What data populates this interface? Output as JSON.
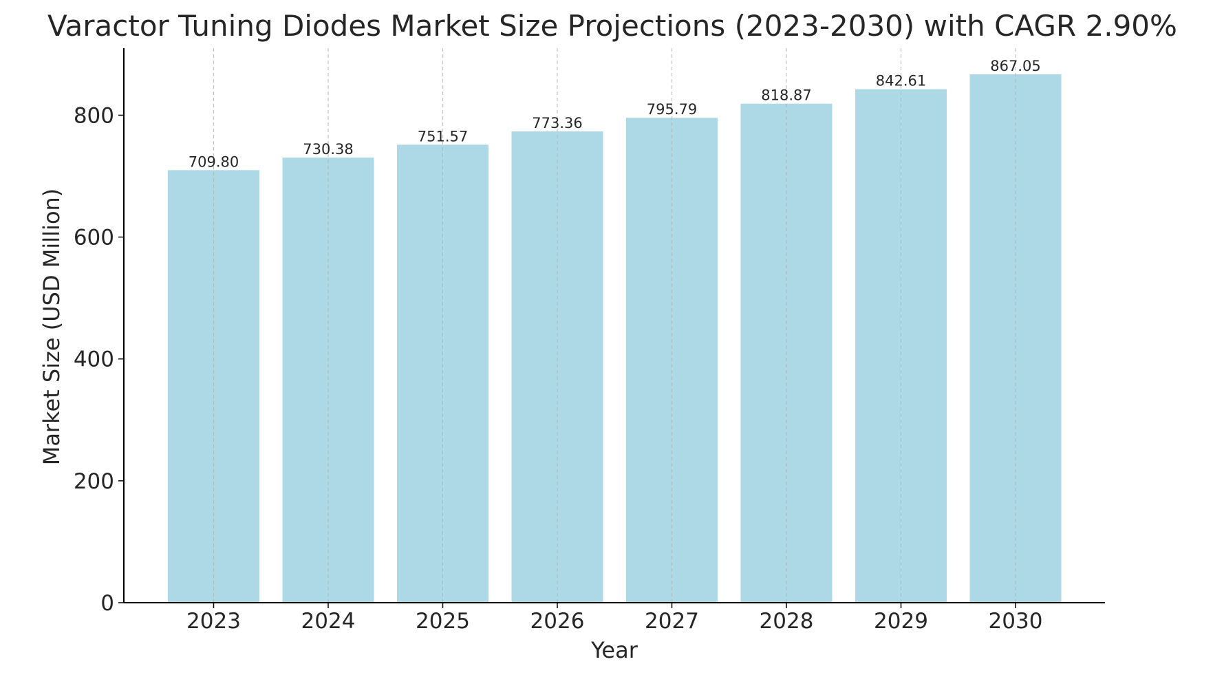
{
  "chart_data": {
    "type": "bar",
    "title": "Varactor Tuning Diodes Market Size Projections (2023-2030) with CAGR 2.90%",
    "xlabel": "Year",
    "ylabel": "Market Size (USD Million)",
    "categories": [
      "2023",
      "2024",
      "2025",
      "2026",
      "2027",
      "2028",
      "2029",
      "2030"
    ],
    "values": [
      709.8,
      730.38,
      751.57,
      773.36,
      795.79,
      818.87,
      842.61,
      867.05
    ],
    "value_labels": [
      "709.80",
      "730.38",
      "751.57",
      "773.36",
      "795.79",
      "818.87",
      "842.61",
      "867.05"
    ],
    "ylim": [
      0,
      910
    ],
    "yticks": [
      0,
      200,
      400,
      600,
      800
    ],
    "grid": "vertical dashed",
    "colors": {
      "bar": "#add8e6",
      "grid": "#b0b0b0",
      "axis": "#000000",
      "text": "#262626"
    }
  }
}
